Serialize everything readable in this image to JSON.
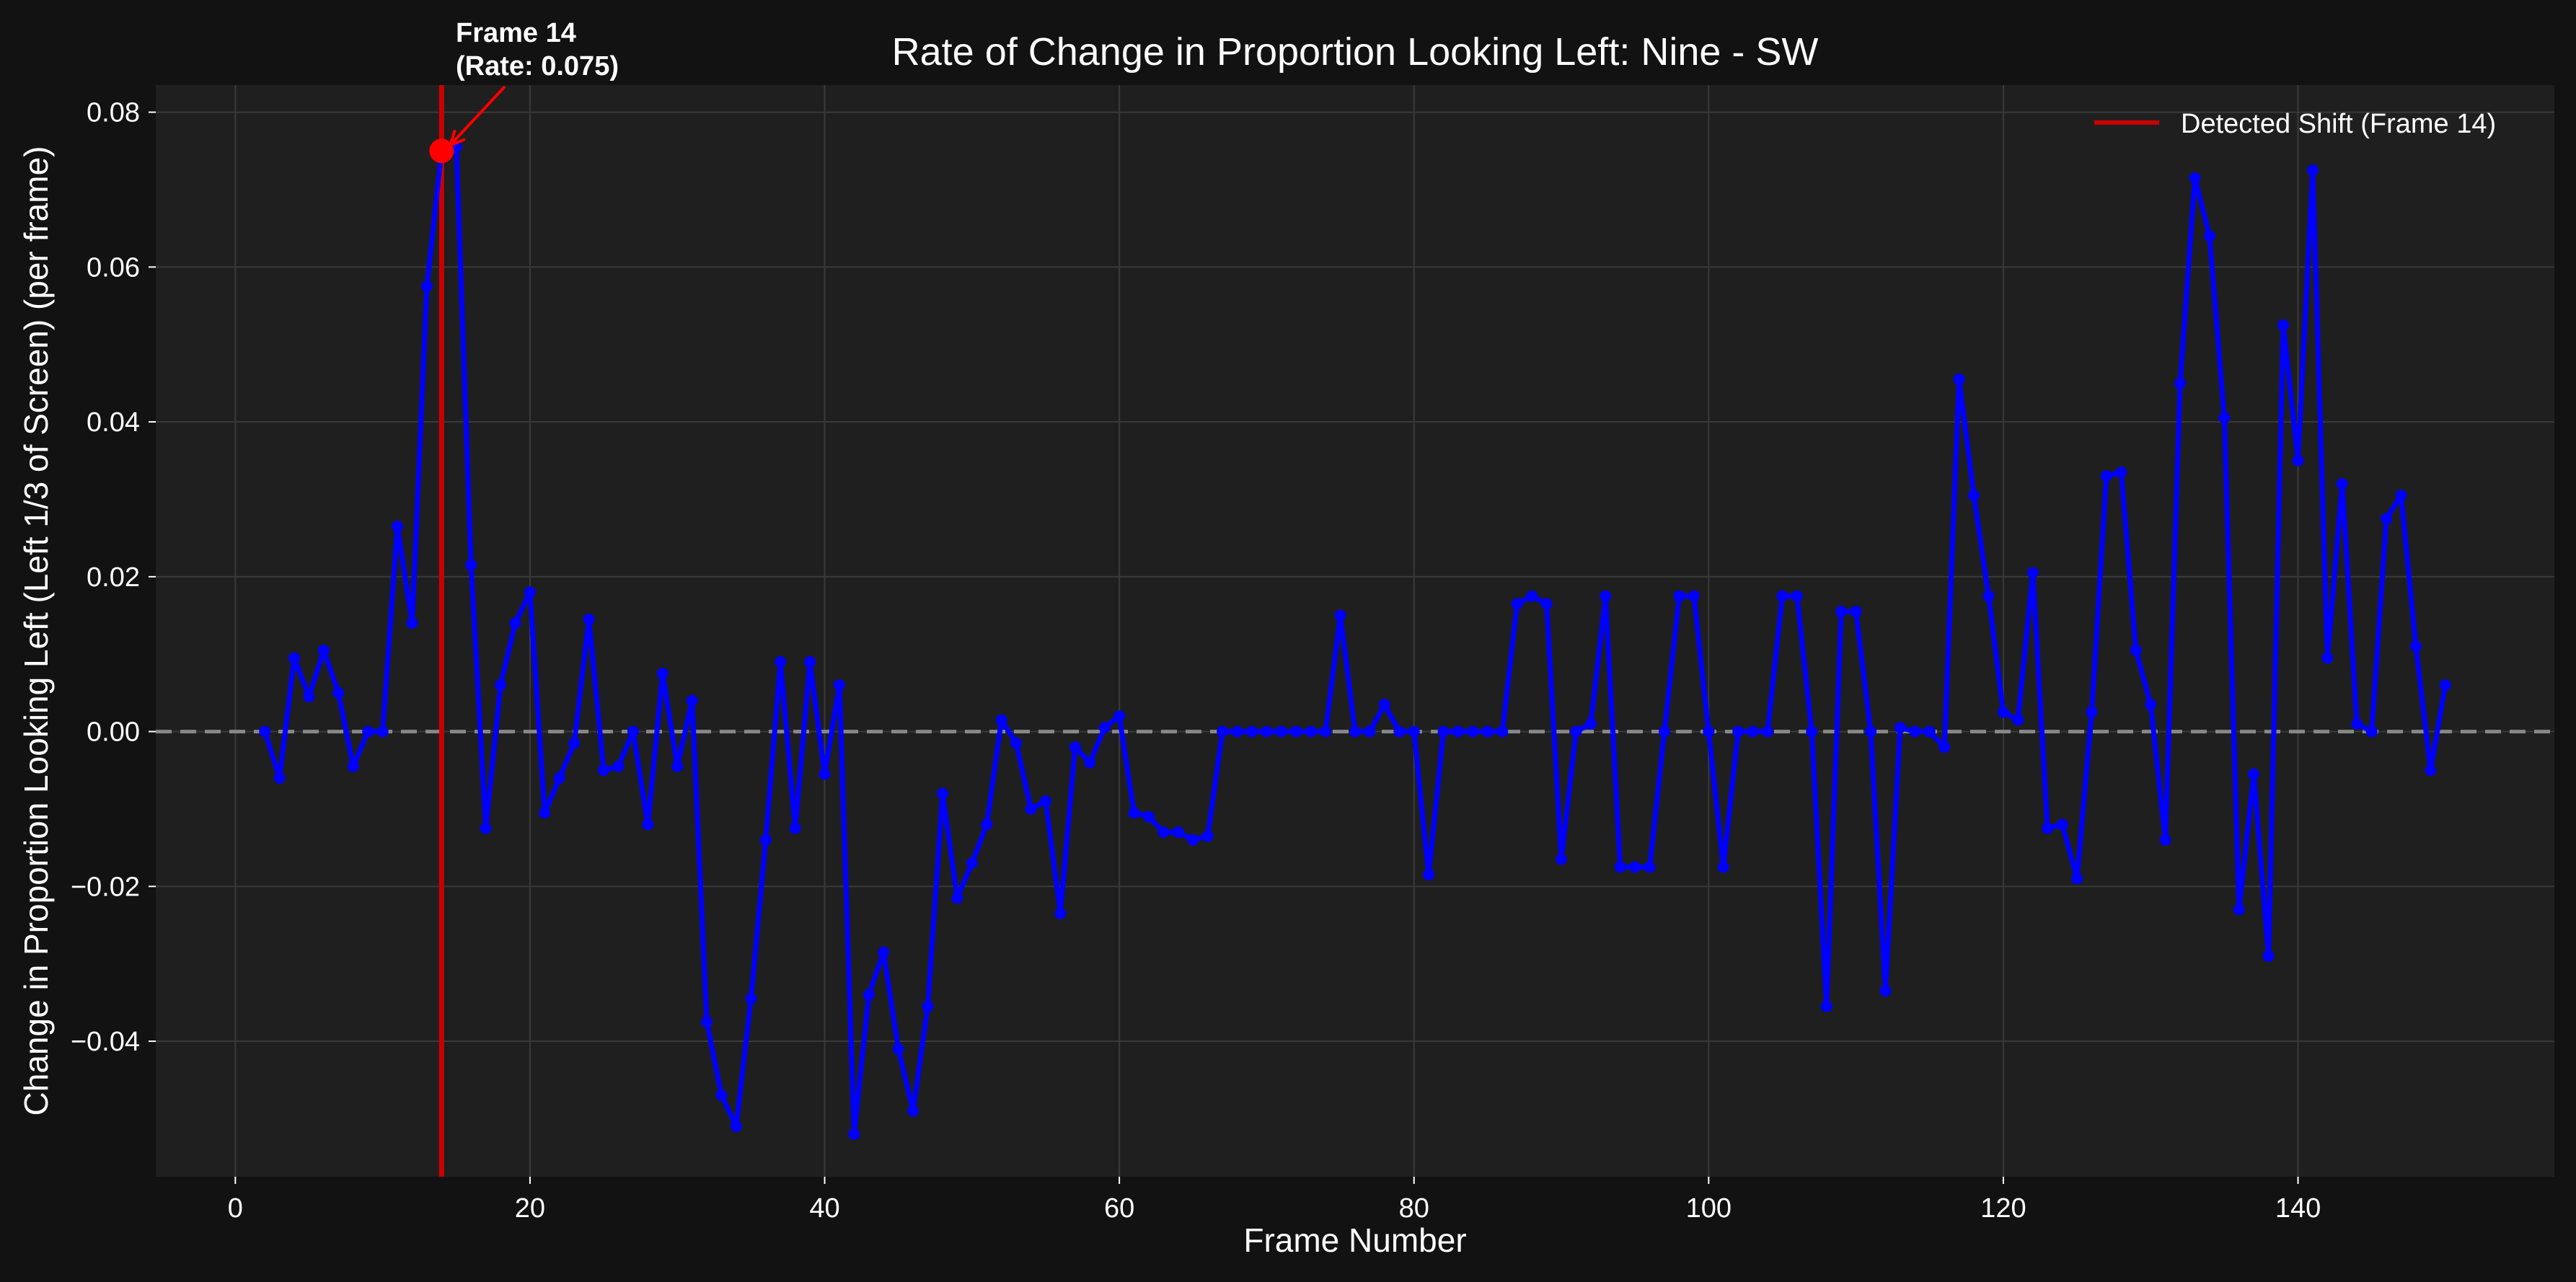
{
  "chart_data": {
    "type": "line",
    "title": "Rate of Change in Proportion Looking Left: Nine - SW",
    "xlabel": "Frame Number",
    "ylabel": "Change in Proportion Looking Left (Left 1/3 of Screen) (per frame)",
    "xlim": [
      -5.4,
      157.4
    ],
    "ylim": [
      -0.0575,
      0.0835
    ],
    "xticks": [
      0,
      20,
      40,
      60,
      80,
      100,
      120,
      140
    ],
    "xtick_labels": [
      "0",
      "20",
      "40",
      "60",
      "80",
      "100",
      "120",
      "140"
    ],
    "yticks": [
      -0.04,
      -0.02,
      0.0,
      0.02,
      0.04,
      0.06,
      0.08
    ],
    "ytick_labels": [
      "−0.04",
      "−0.02",
      "0.00",
      "0.02",
      "0.04",
      "0.06",
      "0.08"
    ],
    "grid": true,
    "legend": {
      "position": "top-right",
      "entries": [
        "Detected Shift (Frame 14)"
      ]
    },
    "zero_line": 0.0,
    "shift_frame": 14,
    "shift_rate": 0.075,
    "annotation": {
      "line1": "Frame 14",
      "line2": "(Rate: 0.075)"
    },
    "colors": {
      "background": "#121212",
      "plot_bg": "#1f1f1f",
      "series": "#0000ff",
      "shift": "#ff0000",
      "grid": "#3a3a3a",
      "zero": "#888888"
    },
    "series": [
      {
        "x": [
          2,
          3,
          4,
          5,
          6,
          7,
          8,
          9,
          10,
          11,
          12,
          13,
          14,
          15,
          16,
          17,
          18,
          19,
          20,
          21,
          22,
          23,
          24,
          25,
          26,
          27,
          28,
          29,
          30,
          31,
          32,
          33,
          34,
          35,
          36,
          37,
          38,
          39,
          40,
          41,
          42,
          43,
          44,
          45,
          46,
          47,
          48,
          49,
          50,
          51,
          52,
          53,
          54,
          55,
          56,
          57,
          58,
          59,
          60,
          61,
          62,
          63,
          64,
          65,
          66,
          67,
          68,
          69,
          70,
          71,
          72,
          73,
          74,
          75,
          76,
          77,
          78,
          79,
          80,
          81,
          82,
          83,
          84,
          85,
          86,
          87,
          88,
          89,
          90,
          91,
          92,
          93,
          94,
          95,
          96,
          97,
          98,
          99,
          100,
          101,
          102,
          103,
          104,
          105,
          106,
          107,
          108,
          109,
          110,
          111,
          112,
          113,
          114,
          115,
          116,
          117,
          118,
          119,
          120,
          121,
          122,
          123,
          124,
          125,
          126,
          127,
          128,
          129,
          130,
          131,
          132,
          133,
          134,
          135,
          136,
          137,
          138,
          139,
          140,
          141,
          142,
          143,
          144,
          145,
          146,
          147,
          148,
          149,
          150
        ],
        "values": [
          0.0,
          -0.006,
          0.0095,
          0.0045,
          0.0105,
          0.005,
          -0.0045,
          0.0,
          0.0,
          0.0265,
          0.014,
          0.0575,
          0.075,
          0.0755,
          0.0215,
          -0.0125,
          0.006,
          0.014,
          0.018,
          -0.0105,
          -0.006,
          -0.0015,
          0.0145,
          -0.005,
          -0.0045,
          0.0,
          -0.012,
          0.0075,
          -0.0045,
          0.004,
          -0.0375,
          -0.047,
          -0.051,
          -0.0345,
          -0.014,
          0.009,
          -0.0125,
          0.009,
          -0.0055,
          0.006,
          -0.052,
          -0.034,
          -0.0285,
          -0.041,
          -0.049,
          -0.0355,
          -0.008,
          -0.0215,
          -0.017,
          -0.012,
          0.0015,
          -0.0015,
          -0.01,
          -0.009,
          -0.0235,
          -0.002,
          -0.004,
          0.0005,
          0.002,
          -0.0105,
          -0.011,
          -0.013,
          -0.013,
          -0.014,
          -0.0135,
          0.0,
          0.0,
          0.0,
          0.0,
          0.0,
          0.0,
          0.0,
          0.0,
          0.015,
          0.0,
          0.0,
          0.0035,
          0.0,
          0.0,
          -0.0185,
          0.0,
          0.0,
          0.0,
          0.0,
          0.0,
          0.0165,
          0.0175,
          0.0165,
          -0.0165,
          0.0,
          0.001,
          0.0175,
          -0.0175,
          -0.0175,
          -0.0175,
          0.0,
          0.0175,
          0.0175,
          0.0,
          -0.0175,
          0.0,
          0.0,
          0.0,
          0.0175,
          0.0175,
          0.0,
          -0.0355,
          0.0155,
          0.0155,
          0.0,
          -0.0335,
          0.0005,
          0.0,
          0.0,
          -0.002,
          0.0455,
          0.0305,
          0.0175,
          0.0025,
          0.0015,
          0.0205,
          -0.0125,
          -0.012,
          -0.019,
          0.0025,
          0.033,
          0.0335,
          0.0105,
          0.0035,
          -0.014,
          0.045,
          0.0715,
          0.064,
          0.0405,
          -0.023,
          -0.0055,
          -0.029,
          0.0525,
          0.035,
          0.0725,
          0.0095,
          0.032,
          0.001,
          0.0,
          0.0275,
          0.0305,
          0.011,
          -0.005,
          0.006
        ]
      }
    ]
  }
}
